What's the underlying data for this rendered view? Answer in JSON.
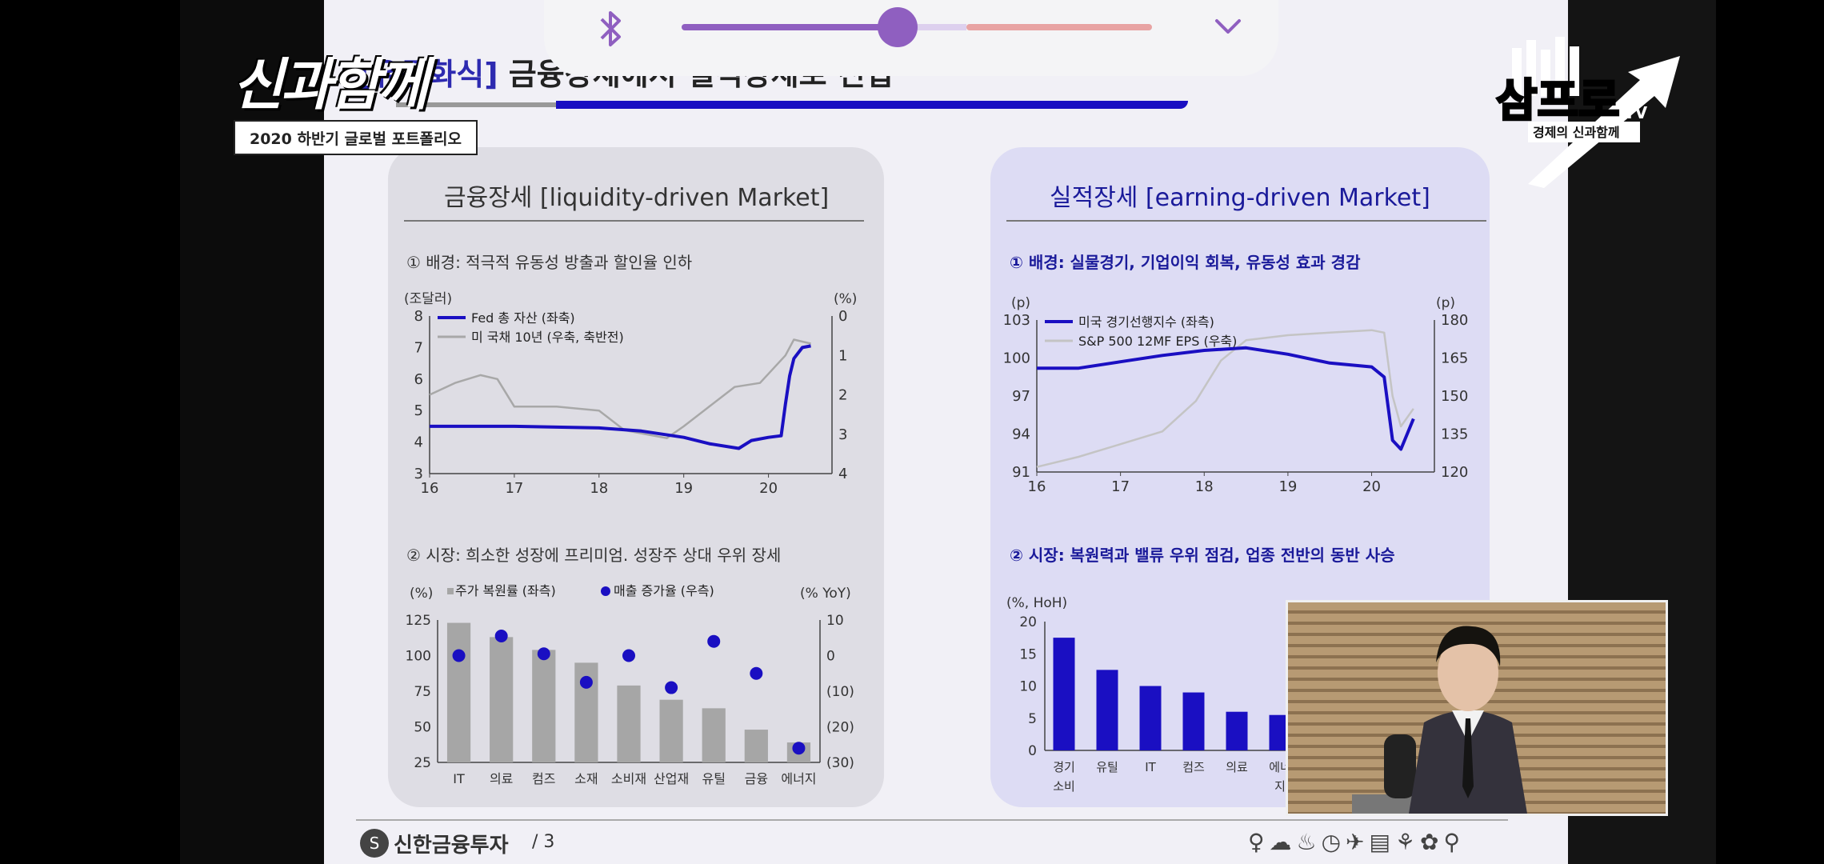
{
  "overlay": {
    "volume_level": 0.42,
    "bluetooth_icon": "bluetooth-icon",
    "collapse_icon": "chevron-down-icon",
    "accent_color": "#8f5fc0"
  },
  "show": {
    "logo_text": "신과함께",
    "subtitle": "2020 하반기 글로벌 포트폴리오",
    "tv_logo_text": "삼프로",
    "tv_logo_tv": "TV",
    "tv_logo_sub": "경제의 신과함께"
  },
  "slide": {
    "title_highlight": "[유동화식]",
    "title_rest": " 금융장세에서 실적장세로 진입",
    "footer_brand": "신한금융투자",
    "footer_page": "/ 3",
    "footer_icons": "♀☁♨◷✈▤⚘✿⚲"
  },
  "left_panel": {
    "title": "금융장세 [liquidity-driven Market]",
    "section1": "① 배경: 적극적 유동성 방출과 할인율 인하",
    "section2": "② 시장: 희소한 성장에 프리미엄. 성장주 상대 우위 장세"
  },
  "right_panel": {
    "title": "실적장세 [earning-driven Market]",
    "section1": "① 배경: 실물경기, 기업이익 회복, 유동성 효과 경감",
    "section2": "② 시장: 복원력과 밸류 우위 점검, 업종 전반의 동반 사승"
  },
  "chart_data": [
    {
      "type": "line",
      "x_ticks": [
        "16",
        "17",
        "18",
        "19",
        "20"
      ],
      "y_left_label": "(조달러)",
      "y_right_label": "(%)",
      "y_left_ticks": [
        "8",
        "7",
        "6",
        "5",
        "4",
        "3"
      ],
      "y_right_ticks": [
        "0",
        "1",
        "2",
        "3",
        "4"
      ],
      "ylim_left": [
        3,
        8
      ],
      "ylim_right_inverted": [
        0,
        4
      ],
      "series": [
        {
          "name": "Fed 총 자산 (좌축)",
          "color": "#1a0fc2",
          "x": [
            2016.0,
            2017.0,
            2018.0,
            2018.5,
            2019.0,
            2019.3,
            2019.65,
            2019.8,
            2020.0,
            2020.15,
            2020.2,
            2020.25,
            2020.3,
            2020.4,
            2020.5
          ],
          "values": [
            4.5,
            4.5,
            4.45,
            4.35,
            4.15,
            3.95,
            3.8,
            4.05,
            4.15,
            4.2,
            5.2,
            6.1,
            6.65,
            7.0,
            7.05
          ]
        },
        {
          "name": "미 국채 10년 (우축, 축반전)",
          "color": "#a8a8a8",
          "x": [
            2016.0,
            2016.3,
            2016.6,
            2016.8,
            2017.0,
            2017.5,
            2018.0,
            2018.3,
            2018.8,
            2019.0,
            2019.3,
            2019.6,
            2019.9,
            2020.2,
            2020.3,
            2020.5
          ],
          "values": [
            2.0,
            1.7,
            1.5,
            1.6,
            2.3,
            2.3,
            2.4,
            2.9,
            3.1,
            2.8,
            2.3,
            1.8,
            1.7,
            1.0,
            0.6,
            0.7
          ]
        }
      ]
    },
    {
      "type": "line",
      "x_ticks": [
        "16",
        "17",
        "18",
        "19",
        "20"
      ],
      "y_left_label": "(p)",
      "y_right_label": "(p)",
      "y_left_ticks": [
        "103",
        "100",
        "97",
        "94",
        "91"
      ],
      "y_right_ticks": [
        "180",
        "165",
        "150",
        "135",
        "120"
      ],
      "ylim_left": [
        91,
        103
      ],
      "ylim_right": [
        120,
        180
      ],
      "series": [
        {
          "name": "미국 경기선행지수 (좌측)",
          "color": "#1a0fc2",
          "x": [
            2016.0,
            2016.5,
            2017.0,
            2017.5,
            2018.0,
            2018.5,
            2019.0,
            2019.5,
            2020.0,
            2020.15,
            2020.25,
            2020.35,
            2020.5
          ],
          "values": [
            99.2,
            99.2,
            99.7,
            100.2,
            100.6,
            100.8,
            100.3,
            99.6,
            99.3,
            98.5,
            93.5,
            92.8,
            95.2
          ]
        },
        {
          "name": "S&P 500 12MF EPS (우축)",
          "color": "#c4c4c4",
          "x": [
            2016.0,
            2016.5,
            2017.0,
            2017.5,
            2017.9,
            2018.2,
            2018.5,
            2019.0,
            2019.5,
            2020.0,
            2020.15,
            2020.25,
            2020.35,
            2020.5
          ],
          "values": [
            122,
            126,
            131,
            136,
            148,
            164,
            172,
            174,
            175,
            176,
            175,
            150,
            138,
            145
          ]
        }
      ]
    },
    {
      "type": "bar",
      "categories": [
        "IT",
        "의료",
        "컴즈",
        "소재",
        "소비재",
        "산업재",
        "유틸",
        "금융",
        "에너지"
      ],
      "y_left_label": "(%)",
      "y_right_label": "(% YoY)",
      "ylim_left": [
        25,
        125
      ],
      "ylim_right": [
        -30,
        10
      ],
      "y_left_ticks": [
        "125",
        "100",
        "75",
        "50",
        "25"
      ],
      "y_right_ticks": [
        "10",
        "0",
        "(10)",
        "(20)",
        "(30)"
      ],
      "series": [
        {
          "name": "주가 복원률 (좌측)",
          "type": "bar",
          "color": "#a6a6a6",
          "values": [
            123,
            113,
            104,
            95,
            79,
            69,
            63,
            48,
            39
          ]
        },
        {
          "name": "매출 증가율 (우측)",
          "type": "scatter",
          "color": "#1a0fc2",
          "values": [
            0,
            5.5,
            0.5,
            -7.5,
            0,
            -9,
            4,
            -5,
            -26
          ]
        }
      ]
    },
    {
      "type": "bar",
      "categories": [
        "경기소비",
        "유틸",
        "IT",
        "컴즈",
        "의료",
        "에너지"
      ],
      "y_label": "(%, HoH)",
      "ylim": [
        0,
        20
      ],
      "y_ticks": [
        "20",
        "15",
        "10",
        "5",
        "0"
      ],
      "series": [
        {
          "name": "",
          "color": "#1a0fc2",
          "values": [
            17.5,
            12.5,
            10,
            9,
            6,
            5.5
          ]
        }
      ]
    }
  ]
}
